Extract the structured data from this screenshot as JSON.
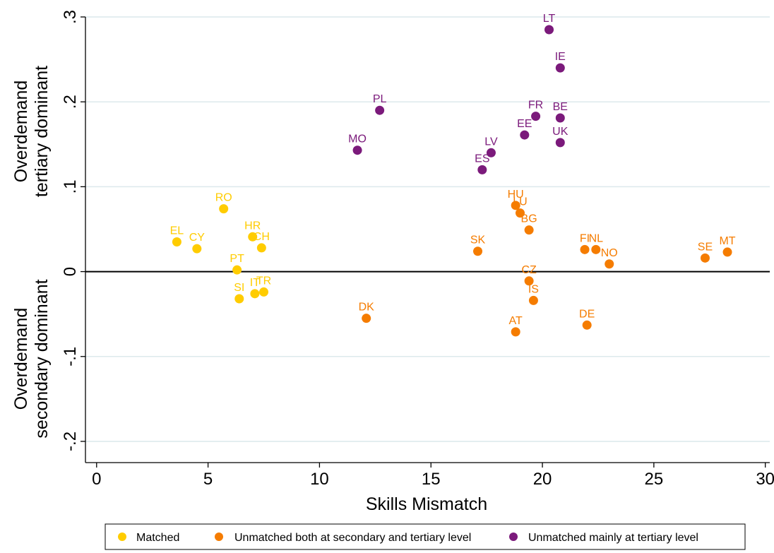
{
  "chart_data": {
    "type": "scatter",
    "title": "",
    "xlabel": "Skills Mismatch",
    "ylabel_lines": {
      "upper": [
        "Overdemand",
        "tertiary dominant"
      ],
      "lower": [
        "Overdemand",
        "secondary dominant"
      ]
    },
    "xlim": [
      -0.5,
      30.2
    ],
    "ylim": [
      -0.225,
      0.3
    ],
    "x_ticks": [
      0,
      5,
      10,
      15,
      20,
      25,
      30
    ],
    "x_tick_labels": [
      "0",
      "5",
      "10",
      "15",
      "20",
      "25",
      "30"
    ],
    "y_ticks": [
      -0.2,
      -0.1,
      0,
      0.1,
      0.2,
      0.3
    ],
    "y_tick_labels": [
      "-.2",
      "-.1",
      "0",
      ".1",
      ".2",
      ".3"
    ],
    "grid": true,
    "reference_line_y": 0,
    "legend_position": "bottom",
    "series": [
      {
        "name": "Matched",
        "color": "#ffcc00",
        "points": [
          {
            "label": "EL",
            "x": 3.6,
            "y": 0.035
          },
          {
            "label": "CY",
            "x": 4.5,
            "y": 0.027
          },
          {
            "label": "RO",
            "x": 5.7,
            "y": 0.074
          },
          {
            "label": "PT",
            "x": 6.3,
            "y": 0.002
          },
          {
            "label": "SI",
            "x": 6.4,
            "y": -0.032
          },
          {
            "label": "HR",
            "x": 7.0,
            "y": 0.041
          },
          {
            "label": "IT",
            "x": 7.1,
            "y": -0.026
          },
          {
            "label": "CH",
            "x": 7.4,
            "y": 0.028
          },
          {
            "label": "TR",
            "x": 7.5,
            "y": -0.024
          }
        ]
      },
      {
        "name": "Unmatched both at secondary and tertiary level",
        "color": "#f57c00",
        "points": [
          {
            "label": "DK",
            "x": 12.1,
            "y": -0.055
          },
          {
            "label": "SK",
            "x": 17.1,
            "y": 0.024
          },
          {
            "label": "HU",
            "x": 18.8,
            "y": 0.078
          },
          {
            "label": "LU",
            "x": 19.0,
            "y": 0.069
          },
          {
            "label": "BG",
            "x": 19.4,
            "y": 0.049
          },
          {
            "label": "CZ",
            "x": 19.4,
            "y": -0.011
          },
          {
            "label": "IS",
            "x": 19.6,
            "y": -0.034
          },
          {
            "label": "AT",
            "x": 18.8,
            "y": -0.071
          },
          {
            "label": "FI",
            "x": 21.9,
            "y": 0.026
          },
          {
            "label": "NL",
            "x": 22.4,
            "y": 0.026
          },
          {
            "label": "NO",
            "x": 23.0,
            "y": 0.009
          },
          {
            "label": "DE",
            "x": 22.0,
            "y": -0.063
          },
          {
            "label": "SE",
            "x": 27.3,
            "y": 0.016
          },
          {
            "label": "MT",
            "x": 28.3,
            "y": 0.023
          }
        ]
      },
      {
        "name": "Unmatched mainly at tertiary level",
        "color": "#7b1a7b",
        "points": [
          {
            "label": "MO",
            "x": 11.7,
            "y": 0.143
          },
          {
            "label": "PL",
            "x": 12.7,
            "y": 0.19
          },
          {
            "label": "ES",
            "x": 17.3,
            "y": 0.12
          },
          {
            "label": "LV",
            "x": 17.7,
            "y": 0.14
          },
          {
            "label": "EE",
            "x": 19.2,
            "y": 0.161
          },
          {
            "label": "FR",
            "x": 19.7,
            "y": 0.183
          },
          {
            "label": "LT",
            "x": 20.3,
            "y": 0.285
          },
          {
            "label": "IE",
            "x": 20.8,
            "y": 0.24
          },
          {
            "label": "BE",
            "x": 20.8,
            "y": 0.181
          },
          {
            "label": "UK",
            "x": 20.8,
            "y": 0.152
          }
        ]
      }
    ]
  }
}
